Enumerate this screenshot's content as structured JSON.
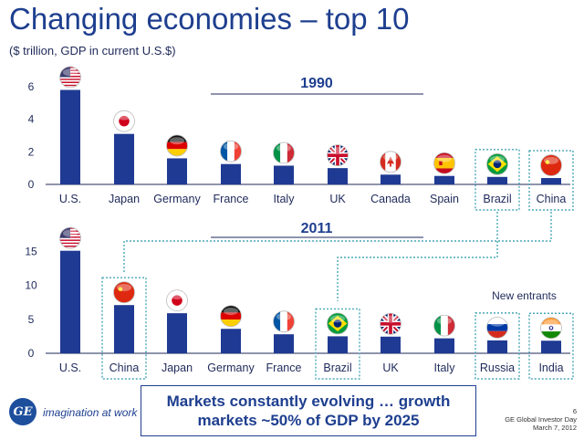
{
  "title": "Changing economies – top 10",
  "subtitle": "($ trillion, GDP in current U.S.$)",
  "colors": {
    "bar": "#1f3a93",
    "title": "#1e3f8f",
    "dotted": "#4aa8b8"
  },
  "chart_data": [
    {
      "type": "bar",
      "title": "1990",
      "ylim": [
        0,
        6.5
      ],
      "yticks": [
        0,
        2,
        4,
        6
      ],
      "categories": [
        "U.S.",
        "Japan",
        "Germany",
        "France",
        "Italy",
        "UK",
        "Canada",
        "Spain",
        "Brazil",
        "China"
      ],
      "values": [
        5.8,
        3.1,
        1.6,
        1.25,
        1.15,
        1.0,
        0.6,
        0.52,
        0.46,
        0.39
      ],
      "flags": [
        "us-flag-icon",
        "japan-flag-icon",
        "germany-flag-icon",
        "france-flag-icon",
        "italy-flag-icon",
        "uk-flag-icon",
        "canada-flag-icon",
        "spain-flag-icon",
        "brazil-flag-icon",
        "china-flag-icon"
      ],
      "highlighted": [
        "Brazil",
        "China"
      ]
    },
    {
      "type": "bar",
      "title": "2011",
      "ylim": [
        0,
        16
      ],
      "yticks": [
        0,
        5,
        10,
        15
      ],
      "categories": [
        "U.S.",
        "China",
        "Japan",
        "Germany",
        "France",
        "Brazil",
        "UK",
        "Italy",
        "Russia",
        "India"
      ],
      "values": [
        15.1,
        7.1,
        5.9,
        3.6,
        2.8,
        2.5,
        2.45,
        2.2,
        1.9,
        1.85
      ],
      "flags": [
        "us-flag-icon",
        "china-flag-icon",
        "japan-flag-icon",
        "germany-flag-icon",
        "france-flag-icon",
        "brazil-flag-icon",
        "uk-flag-icon",
        "italy-flag-icon",
        "russia-flag-icon",
        "india-flag-icon"
      ],
      "highlighted": [
        "China",
        "Brazil",
        "Russia",
        "India"
      ],
      "annotation": "New entrants"
    }
  ],
  "callout": "Markets constantly evolving … growth markets ~50% of GDP by 2025",
  "footer": {
    "logo_text": "GE",
    "tagline": "imagination at work",
    "page_number": "6",
    "event": "GE Global Investor Day",
    "date": "March 7, 2012"
  }
}
